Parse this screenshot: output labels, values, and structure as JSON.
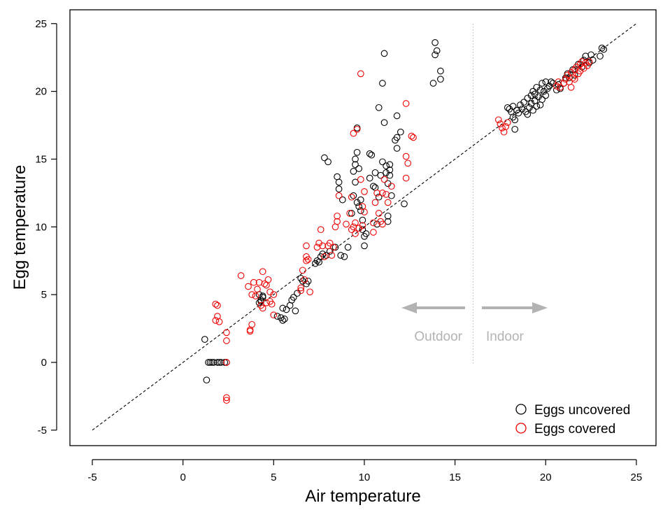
{
  "chart_data": {
    "type": "scatter",
    "title": "",
    "xlabel": "Air temperature",
    "ylabel": "Egg temperature",
    "xlim": [
      -5.5,
      26.0
    ],
    "ylim": [
      -6.0,
      25.6
    ],
    "x_ticks": [
      "-5",
      "0",
      "5",
      "10",
      "15",
      "20",
      "25"
    ],
    "y_ticks": [
      "-5",
      "0",
      "5",
      "10",
      "15",
      "20",
      "25"
    ],
    "grid": false,
    "legend_position": "bottom-right",
    "reference_line": {
      "label": "",
      "from": [
        -5,
        -5
      ],
      "to": [
        25,
        25
      ],
      "style": "dashed",
      "color": "#000000"
    },
    "divider": {
      "x": 16,
      "style": "dotted",
      "color": "#bbbbbb"
    },
    "annotations": [
      {
        "text": "Outdoor",
        "direction": "left",
        "color": "#b3b3b3"
      },
      {
        "text": "Indoor",
        "direction": "right",
        "color": "#b3b3b3"
      }
    ],
    "series": [
      {
        "name": "Eggs uncovered",
        "color": "#000000",
        "marker": "open-circle",
        "points": [
          [
            1.2,
            1.7
          ],
          [
            1.3,
            -1.3
          ],
          [
            1.4,
            0
          ],
          [
            1.5,
            0
          ],
          [
            1.6,
            0
          ],
          [
            1.7,
            0
          ],
          [
            1.9,
            0
          ],
          [
            2.0,
            0
          ],
          [
            2.1,
            0
          ],
          [
            2.3,
            0
          ],
          [
            2.4,
            0
          ],
          [
            4.2,
            4.4
          ],
          [
            4.3,
            4.6
          ],
          [
            4.4,
            4.8
          ],
          [
            4.2,
            5.0
          ],
          [
            4.4,
            4.9
          ],
          [
            4.3,
            4.5
          ],
          [
            5.2,
            3.4
          ],
          [
            5.4,
            3.3
          ],
          [
            5.5,
            3.1
          ],
          [
            5.6,
            3.2
          ],
          [
            5.5,
            4.0
          ],
          [
            5.7,
            3.9
          ],
          [
            5.9,
            4.2
          ],
          [
            6.0,
            4.6
          ],
          [
            6.1,
            4.8
          ],
          [
            6.2,
            3.8
          ],
          [
            6.3,
            5.1
          ],
          [
            6.5,
            6.2
          ],
          [
            6.6,
            6.0
          ],
          [
            6.8,
            5.8
          ],
          [
            6.9,
            6.0
          ],
          [
            7.3,
            7.3
          ],
          [
            7.4,
            7.5
          ],
          [
            7.5,
            7.4
          ],
          [
            7.6,
            7.8
          ],
          [
            7.7,
            8.0
          ],
          [
            7.8,
            15.1
          ],
          [
            7.9,
            7.9
          ],
          [
            8.0,
            14.8
          ],
          [
            8.1,
            8.2
          ],
          [
            8.4,
            8.5
          ],
          [
            8.5,
            13.7
          ],
          [
            8.6,
            13.3
          ],
          [
            8.6,
            12.8
          ],
          [
            8.7,
            7.9
          ],
          [
            8.8,
            12.0
          ],
          [
            8.9,
            7.8
          ],
          [
            9.1,
            8.5
          ],
          [
            9.3,
            11.0
          ],
          [
            9.4,
            14.1
          ],
          [
            9.4,
            12.3
          ],
          [
            9.5,
            13.3
          ],
          [
            9.5,
            14.6
          ],
          [
            9.5,
            15.0
          ],
          [
            9.6,
            15.5
          ],
          [
            9.6,
            17.3
          ],
          [
            9.7,
            14.3
          ],
          [
            9.7,
            11.5
          ],
          [
            9.8,
            12.0
          ],
          [
            9.6,
            11.8
          ],
          [
            9.8,
            11.2
          ],
          [
            9.9,
            10.5
          ],
          [
            9.9,
            9.8
          ],
          [
            10.0,
            8.6
          ],
          [
            10.0,
            9.3
          ],
          [
            10.1,
            9.5
          ],
          [
            10.3,
            15.4
          ],
          [
            10.3,
            13.6
          ],
          [
            10.4,
            15.3
          ],
          [
            10.5,
            13.0
          ],
          [
            10.6,
            12.9
          ],
          [
            10.6,
            14.0
          ],
          [
            10.7,
            10.2
          ],
          [
            10.8,
            18.8
          ],
          [
            10.8,
            12.2
          ],
          [
            10.9,
            13.8
          ],
          [
            11.0,
            20.6
          ],
          [
            11.0,
            14.8
          ],
          [
            11.1,
            17.7
          ],
          [
            11.1,
            22.8
          ],
          [
            11.2,
            14.5
          ],
          [
            11.2,
            14.0
          ],
          [
            11.3,
            13.2
          ],
          [
            11.3,
            10.4
          ],
          [
            11.3,
            10.8
          ],
          [
            11.4,
            14.6
          ],
          [
            11.4,
            13.8
          ],
          [
            11.4,
            14.2
          ],
          [
            11.5,
            12.3
          ],
          [
            11.7,
            16.4
          ],
          [
            11.8,
            16.6
          ],
          [
            11.8,
            15.8
          ],
          [
            11.8,
            18.2
          ],
          [
            12.0,
            17.0
          ],
          [
            12.2,
            11.7
          ],
          [
            13.8,
            20.6
          ],
          [
            13.9,
            23.6
          ],
          [
            13.9,
            22.7
          ],
          [
            14.0,
            23.0
          ],
          [
            14.2,
            20.9
          ],
          [
            14.2,
            21.5
          ],
          [
            17.9,
            18.8
          ],
          [
            18.0,
            18.7
          ],
          [
            18.1,
            18.5
          ],
          [
            18.2,
            18.1
          ],
          [
            18.2,
            18.9
          ],
          [
            18.3,
            17.9
          ],
          [
            18.3,
            17.2
          ],
          [
            18.4,
            18.6
          ],
          [
            18.5,
            18.4
          ],
          [
            18.6,
            19.0
          ],
          [
            18.7,
            18.7
          ],
          [
            18.8,
            19.2
          ],
          [
            18.9,
            18.5
          ],
          [
            19.0,
            18.3
          ],
          [
            19.0,
            19.5
          ],
          [
            19.1,
            18.8
          ],
          [
            19.2,
            19.1
          ],
          [
            19.2,
            19.7
          ],
          [
            19.3,
            18.6
          ],
          [
            19.3,
            20.0
          ],
          [
            19.4,
            19.3
          ],
          [
            19.4,
            19.8
          ],
          [
            19.5,
            18.9
          ],
          [
            19.5,
            20.3
          ],
          [
            19.6,
            19.6
          ],
          [
            19.7,
            19.0
          ],
          [
            19.7,
            20.1
          ],
          [
            19.8,
            19.4
          ],
          [
            19.8,
            20.6
          ],
          [
            19.9,
            20.0
          ],
          [
            20.0,
            19.7
          ],
          [
            20.0,
            20.7
          ],
          [
            20.1,
            20.2
          ],
          [
            20.2,
            20.4
          ],
          [
            20.3,
            20.7
          ],
          [
            20.4,
            20.6
          ],
          [
            20.6,
            20.1
          ],
          [
            20.7,
            20.5
          ],
          [
            20.8,
            20.2
          ],
          [
            21.0,
            20.6
          ],
          [
            21.1,
            21.0
          ],
          [
            21.2,
            21.3
          ],
          [
            21.3,
            21.0
          ],
          [
            21.5,
            21.6
          ],
          [
            21.6,
            21.2
          ],
          [
            21.8,
            22.0
          ],
          [
            22.0,
            21.8
          ],
          [
            22.1,
            22.3
          ],
          [
            22.2,
            22.6
          ],
          [
            22.4,
            22.1
          ],
          [
            22.5,
            22.7
          ],
          [
            22.6,
            22.3
          ],
          [
            23.0,
            22.6
          ],
          [
            23.1,
            23.2
          ],
          [
            23.2,
            23.1
          ]
        ]
      },
      {
        "name": "Eggs covered",
        "color": "#ee0000",
        "marker": "open-circle",
        "points": [
          [
            1.8,
            4.3
          ],
          [
            1.9,
            4.2
          ],
          [
            1.9,
            3.4
          ],
          [
            1.8,
            3.1
          ],
          [
            2.0,
            3.0
          ],
          [
            2.4,
            2.2
          ],
          [
            2.4,
            1.6
          ],
          [
            2.4,
            0
          ],
          [
            2.4,
            -2.6
          ],
          [
            2.4,
            -2.8
          ],
          [
            3.2,
            6.4
          ],
          [
            3.6,
            5.6
          ],
          [
            3.7,
            2.4
          ],
          [
            3.7,
            2.3
          ],
          [
            3.8,
            2.8
          ],
          [
            3.8,
            5.0
          ],
          [
            3.9,
            5.9
          ],
          [
            4.0,
            4.9
          ],
          [
            4.1,
            5.4
          ],
          [
            4.2,
            5.9
          ],
          [
            4.3,
            4.2
          ],
          [
            4.4,
            4.0
          ],
          [
            4.4,
            6.7
          ],
          [
            4.5,
            5.8
          ],
          [
            4.6,
            4.4
          ],
          [
            4.6,
            5.7
          ],
          [
            4.7,
            6.1
          ],
          [
            4.8,
            4.5
          ],
          [
            4.8,
            5.2
          ],
          [
            4.9,
            4.3
          ],
          [
            5.0,
            3.5
          ],
          [
            5.0,
            5.0
          ],
          [
            6.5,
            5.3
          ],
          [
            6.5,
            5.5
          ],
          [
            6.6,
            6.8
          ],
          [
            6.7,
            6.1
          ],
          [
            6.8,
            7.5
          ],
          [
            6.8,
            7.8
          ],
          [
            6.8,
            8.6
          ],
          [
            6.9,
            7.6
          ],
          [
            7.0,
            5.2
          ],
          [
            7.4,
            8.5
          ],
          [
            7.5,
            8.8
          ],
          [
            7.6,
            9.8
          ],
          [
            7.7,
            8.6
          ],
          [
            7.8,
            7.8
          ],
          [
            8.0,
            8.6
          ],
          [
            8.1,
            8.8
          ],
          [
            8.2,
            7.9
          ],
          [
            8.3,
            8.5
          ],
          [
            8.4,
            10.0
          ],
          [
            8.5,
            10.4
          ],
          [
            8.5,
            10.8
          ],
          [
            8.6,
            12.3
          ],
          [
            9.0,
            10.2
          ],
          [
            9.2,
            11.0
          ],
          [
            9.3,
            9.8
          ],
          [
            9.3,
            12.2
          ],
          [
            9.4,
            10.0
          ],
          [
            9.4,
            16.9
          ],
          [
            9.5,
            9.5
          ],
          [
            9.5,
            10.3
          ],
          [
            9.6,
            17.2
          ],
          [
            9.7,
            9.9
          ],
          [
            9.8,
            21.3
          ],
          [
            9.8,
            13.5
          ],
          [
            9.9,
            10.1
          ],
          [
            9.9,
            11.5
          ],
          [
            10.0,
            11.1
          ],
          [
            10.0,
            12.6
          ],
          [
            10.5,
            9.6
          ],
          [
            10.5,
            10.3
          ],
          [
            10.6,
            11.8
          ],
          [
            10.7,
            12.5
          ],
          [
            10.8,
            11.0
          ],
          [
            10.9,
            10.4
          ],
          [
            11.0,
            10.2
          ],
          [
            11.0,
            12.5
          ],
          [
            11.1,
            13.5
          ],
          [
            11.2,
            12.4
          ],
          [
            11.3,
            11.8
          ],
          [
            11.5,
            13.0
          ],
          [
            12.3,
            13.6
          ],
          [
            12.3,
            15.2
          ],
          [
            12.3,
            19.1
          ],
          [
            12.4,
            14.7
          ],
          [
            12.6,
            16.7
          ],
          [
            12.7,
            16.6
          ],
          [
            17.4,
            17.9
          ],
          [
            17.5,
            17.6
          ],
          [
            17.6,
            17.3
          ],
          [
            17.7,
            17.0
          ],
          [
            17.8,
            17.4
          ],
          [
            17.9,
            17.7
          ],
          [
            20.6,
            20.4
          ],
          [
            20.7,
            20.7
          ],
          [
            20.8,
            20.3
          ],
          [
            21.0,
            20.6
          ],
          [
            21.1,
            20.9
          ],
          [
            21.2,
            21.2
          ],
          [
            21.3,
            20.7
          ],
          [
            21.4,
            20.3
          ],
          [
            21.4,
            21.4
          ],
          [
            21.5,
            21.0
          ],
          [
            21.6,
            21.6
          ],
          [
            21.6,
            20.9
          ],
          [
            21.7,
            21.8
          ],
          [
            21.8,
            21.3
          ],
          [
            21.9,
            22.0
          ],
          [
            21.9,
            21.5
          ],
          [
            22.0,
            22.2
          ],
          [
            22.1,
            21.7
          ],
          [
            22.2,
            22.1
          ],
          [
            22.3,
            21.9
          ],
          [
            22.4,
            22.2
          ]
        ]
      }
    ]
  }
}
